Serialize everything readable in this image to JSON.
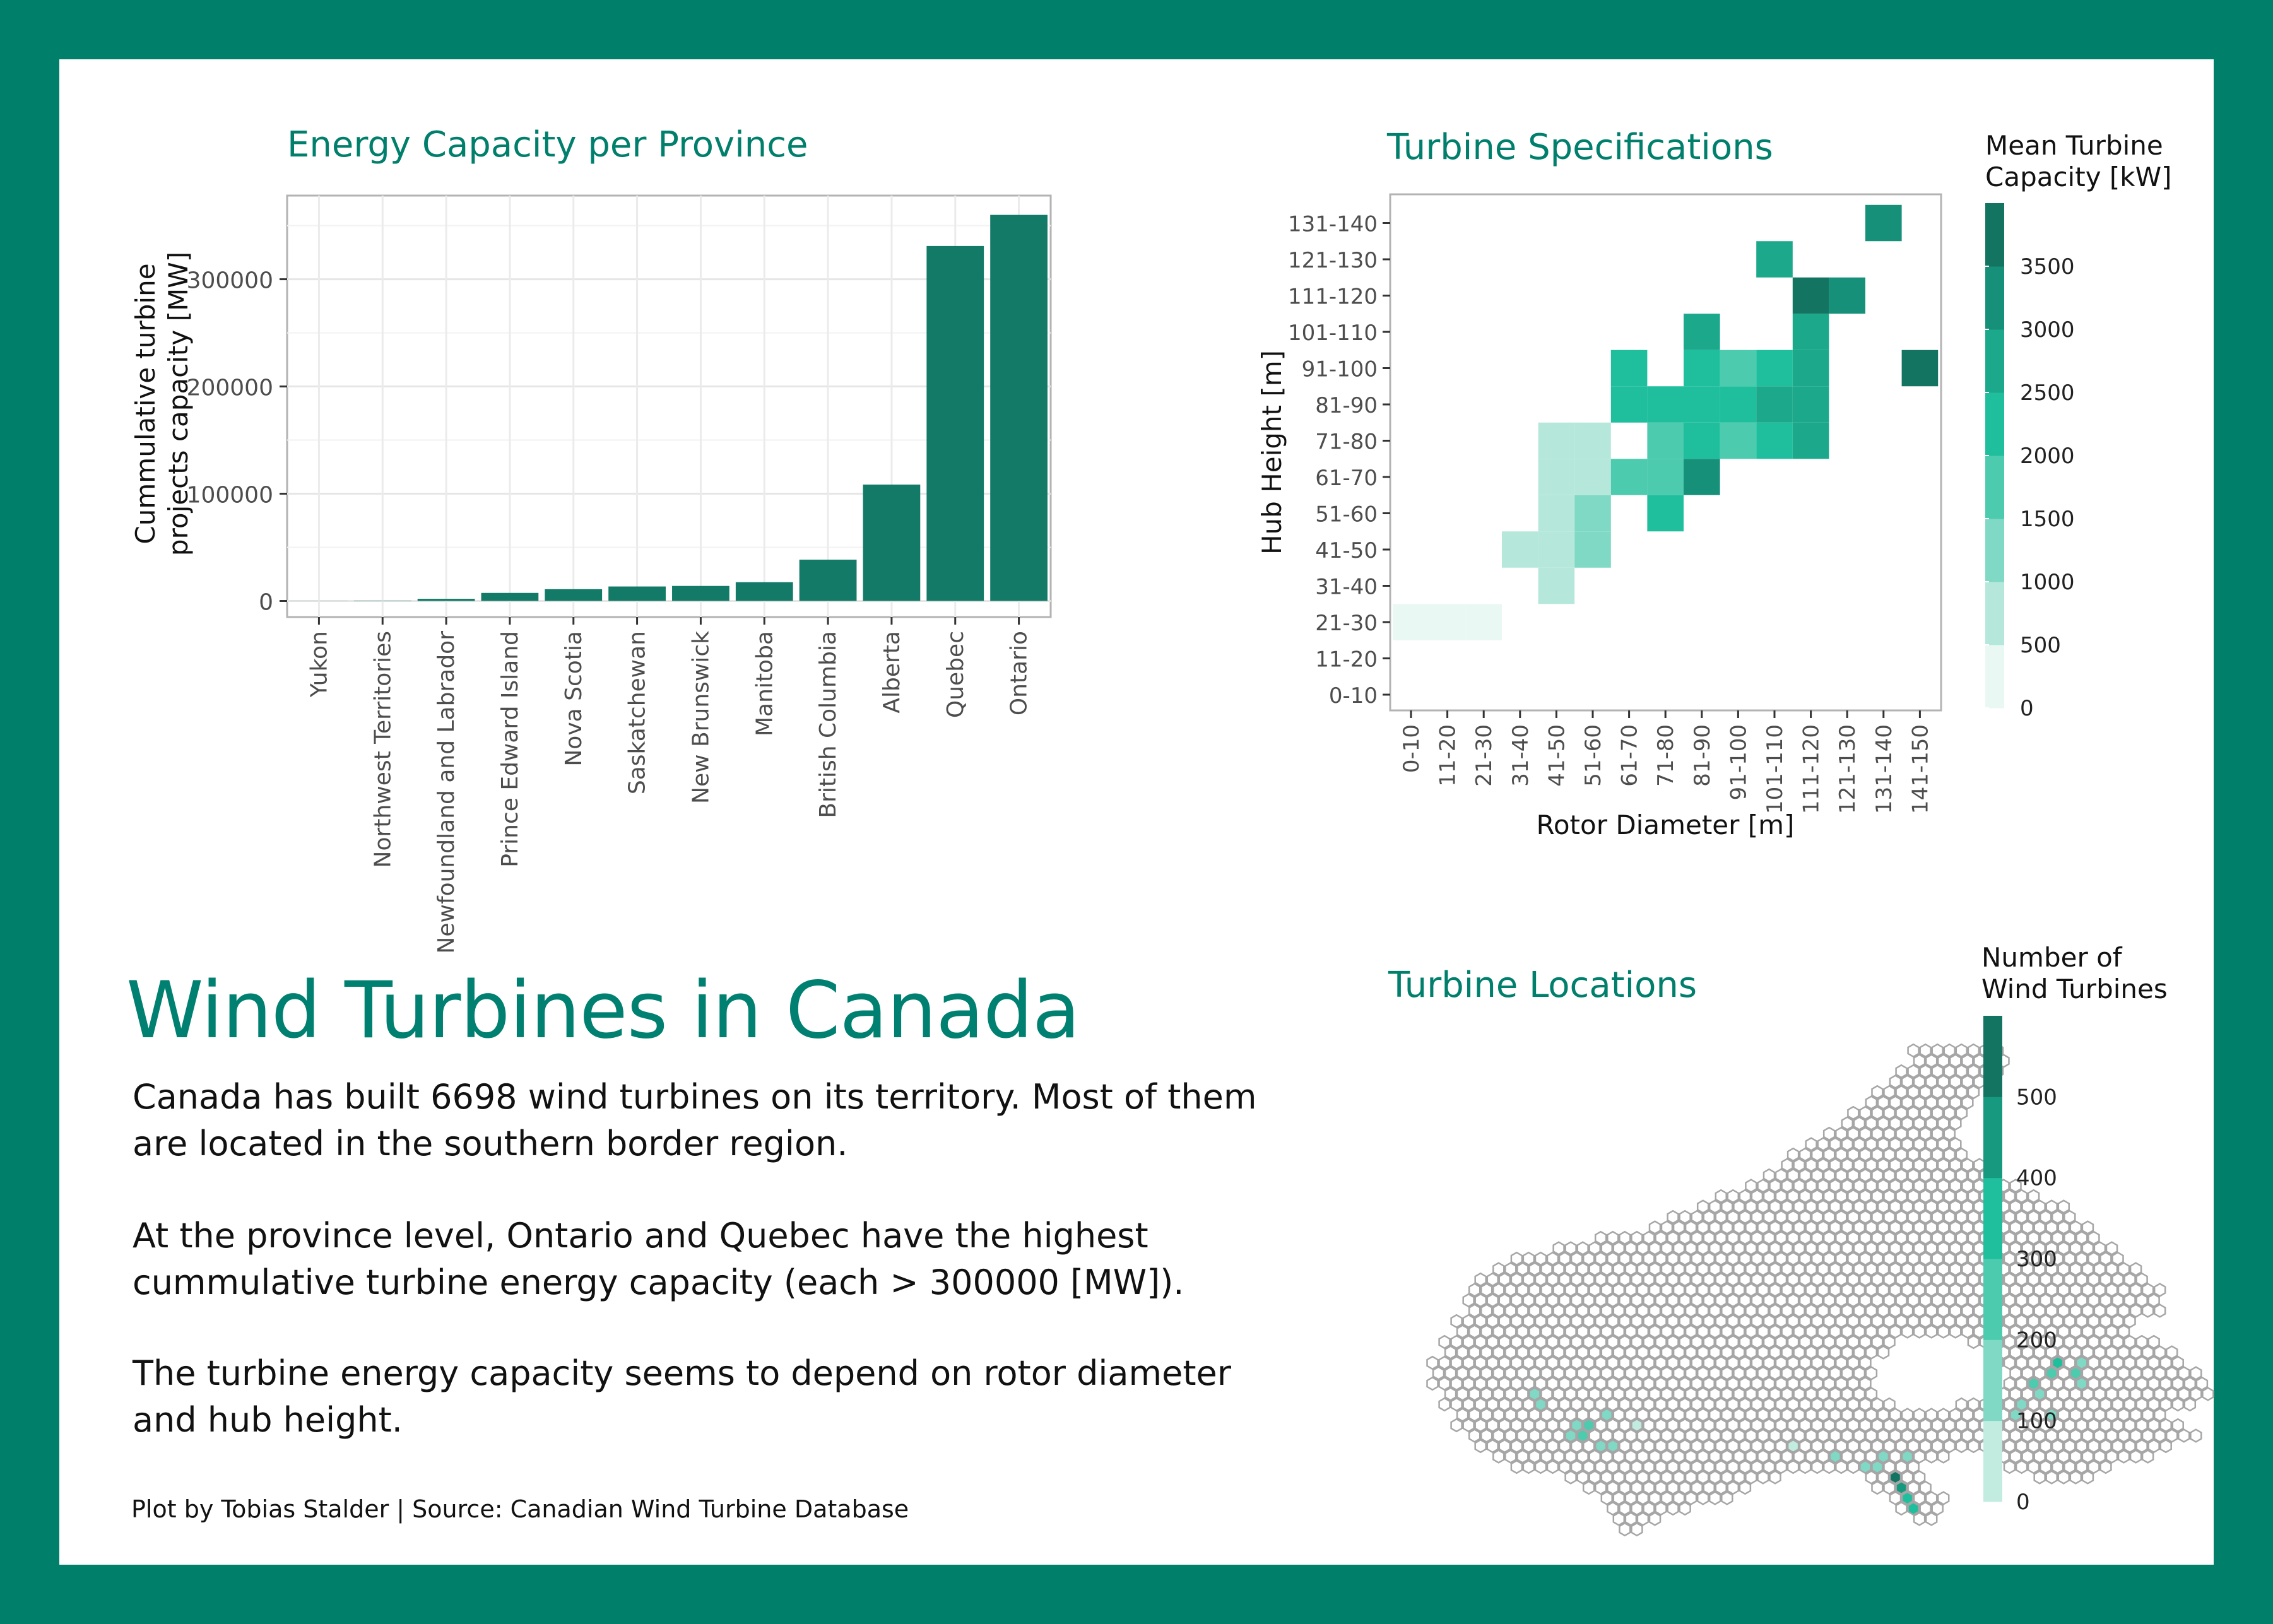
{
  "chart_data": [
    {
      "type": "bar",
      "title": "Energy Capacity per Province",
      "ylabel": "Cummulative turbine projects capacity [MW]",
      "xlabel": "",
      "categories": [
        "Yukon",
        "Northwest Territories",
        "Newfoundland and Labrador",
        "Prince Edward Island",
        "Nova Scotia",
        "Saskatchewan",
        "New Brunswick",
        "Manitoba",
        "British Columbia",
        "Alberta",
        "Quebec",
        "Ontario"
      ],
      "values": [
        100,
        300,
        2000,
        7500,
        11000,
        13500,
        14000,
        17500,
        38500,
        108500,
        331000,
        360000
      ],
      "ylim": [
        -15000,
        378000
      ],
      "yticks": [
        0,
        100000,
        200000,
        300000
      ],
      "ytick_labels": [
        "0",
        "100000",
        "200000",
        "300000"
      ],
      "bar_color": "#137a68",
      "grid": true
    },
    {
      "type": "heatmap",
      "title": "Turbine Specifications",
      "xlabel": "Rotor Diameter [m]",
      "ylabel": "Hub Height [m]",
      "x_categories": [
        "0-10",
        "11-20",
        "21-30",
        "31-40",
        "41-50",
        "51-60",
        "61-70",
        "71-80",
        "81-90",
        "91-100",
        "101-110",
        "111-120",
        "121-130",
        "131-140",
        "141-150"
      ],
      "y_categories": [
        "0-10",
        "11-20",
        "21-30",
        "31-40",
        "41-50",
        "51-60",
        "61-70",
        "71-80",
        "81-90",
        "91-100",
        "101-110",
        "111-120",
        "121-130",
        "131-140"
      ],
      "legend_title": "Mean Turbine Capacity [kW]",
      "legend_ticks": [
        0,
        500,
        1000,
        1500,
        2000,
        2500,
        3000,
        3500
      ],
      "legend_tick_labels": [
        "0",
        "500",
        "1000",
        "1500",
        "2000",
        "2500",
        "3000",
        "3500"
      ],
      "legend_colors": [
        "#eaf8f4",
        "#b5e8db",
        "#7fd9c5",
        "#4ccbae",
        "#1fbf9d",
        "#1ba88b",
        "#17907a",
        "#137462"
      ],
      "legend_max": 4000,
      "cells": [
        {
          "x": "1-20",
          "y": "21-30",
          "value": 150
        },
        {
          "x": "11-20",
          "y": "21-30",
          "value": 150
        },
        {
          "x": "21-30",
          "y": "21-30",
          "value": 200
        },
        {
          "x": "31-40",
          "y": "41-50",
          "value": 750
        },
        {
          "x": "41-50",
          "y": "31-40",
          "value": 750
        },
        {
          "x": "41-50",
          "y": "41-50",
          "value": 900
        },
        {
          "x": "41-50",
          "y": "51-60",
          "value": 900
        },
        {
          "x": "41-50",
          "y": "61-70",
          "value": 800
        },
        {
          "x": "41-50",
          "y": "71-80",
          "value": 800
        },
        {
          "x": "51-60",
          "y": "41-50",
          "value": 1400
        },
        {
          "x": "51-60",
          "y": "51-60",
          "value": 1400
        },
        {
          "x": "51-60",
          "y": "61-70",
          "value": 800
        },
        {
          "x": "51-60",
          "y": "71-80",
          "value": 800
        },
        {
          "x": "61-70",
          "y": "61-70",
          "value": 1700
        },
        {
          "x": "61-70",
          "y": "81-90",
          "value": 2300
        },
        {
          "x": "61-70",
          "y": "91-100",
          "value": 2300
        },
        {
          "x": "71-80",
          "y": "51-60",
          "value": 2300
        },
        {
          "x": "71-80",
          "y": "61-70",
          "value": 1700
        },
        {
          "x": "71-80",
          "y": "71-80",
          "value": 1700
        },
        {
          "x": "71-80",
          "y": "81-90",
          "value": 2300
        },
        {
          "x": "81-90",
          "y": "61-70",
          "value": 3200
        },
        {
          "x": "81-90",
          "y": "71-80",
          "value": 2300
        },
        {
          "x": "81-90",
          "y": "81-90",
          "value": 2300
        },
        {
          "x": "81-90",
          "y": "91-100",
          "value": 2100
        },
        {
          "x": "81-90",
          "y": "101-110",
          "value": 2900
        },
        {
          "x": "91-100",
          "y": "71-80",
          "value": 1800
        },
        {
          "x": "91-100",
          "y": "81-90",
          "value": 2200
        },
        {
          "x": "91-100",
          "y": "91-100",
          "value": 1800
        },
        {
          "x": "101-110",
          "y": "71-80",
          "value": 2300
        },
        {
          "x": "101-110",
          "y": "81-90",
          "value": 2800
        },
        {
          "x": "101-110",
          "y": "91-100",
          "value": 2400
        },
        {
          "x": "101-110",
          "y": "121-130",
          "value": 2900
        },
        {
          "x": "111-120",
          "y": "71-80",
          "value": 2700
        },
        {
          "x": "111-120",
          "y": "81-90",
          "value": 2800
        },
        {
          "x": "111-120",
          "y": "91-100",
          "value": 2800
        },
        {
          "x": "111-120",
          "y": "101-110",
          "value": 2800
        },
        {
          "x": "111-120",
          "y": "111-120",
          "value": 3500
        },
        {
          "x": "121-130",
          "y": "111-120",
          "value": 3300
        },
        {
          "x": "131-140",
          "y": "131-140",
          "value": 3300
        },
        {
          "x": "141-150",
          "y": "91-100",
          "value": 3800
        }
      ]
    },
    {
      "type": "map",
      "title": "Turbine Locations",
      "legend_title": "Number of Wind Turbines",
      "legend_ticks": [
        0,
        100,
        200,
        300,
        400,
        500
      ],
      "legend_tick_labels": [
        "0",
        "100",
        "200",
        "300",
        "400",
        "500"
      ],
      "legend_colors": [
        "#c3ece1",
        "#7fd9c5",
        "#4ccbae",
        "#1fbf9d",
        "#17997f",
        "#137462"
      ],
      "legend_max": 600,
      "hex_fill_empty": "#ffffff",
      "hex_stroke": "#a6a6a6"
    }
  ],
  "text": {
    "main_title": "Wind Turbines in Canada",
    "paragraph_1": "Canada has built 6698 wind turbines on its territory. Most of them are located in the southern border region.",
    "paragraph_2": "At the province level, Ontario and Quebec have the highest cummulative turbine energy capacity (each > 300000 [MW]).",
    "paragraph_3": "The turbine energy capacity seems to depend on rotor diameter and hub height.",
    "footer": "Plot by Tobias Stalder | Source: Canadian Wind Turbine Database"
  }
}
